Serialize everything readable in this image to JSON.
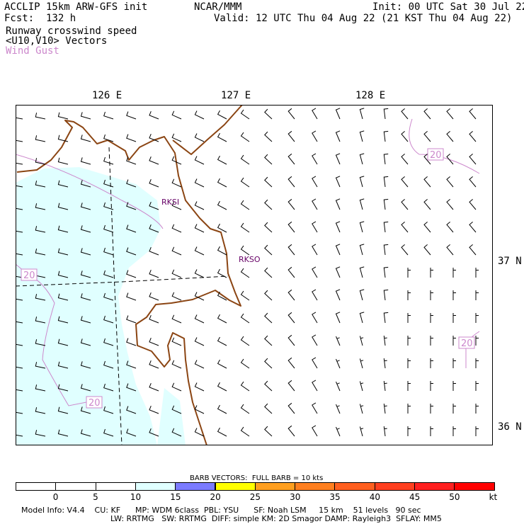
{
  "header": {
    "title": "ACCLIP 15km ARW-GFS init",
    "org": "NCAR/MMM",
    "init": "Init: 00 UTC Sat 30 Jul 22",
    "fcst": "Fcst:  132 h",
    "valid": "Valid: 12 UTC Thu 04 Aug 22 (21 KST Thu 04 Aug 22)",
    "field1": "Runway crosswind speed",
    "field2": "<U10,V10> Vectors",
    "field3": "Wind Gust",
    "field3_color": "#cc88cc"
  },
  "axes": {
    "lon_labels": [
      "126 E",
      "127 E",
      "128 E"
    ],
    "lat_labels": [
      "37 N",
      "36 N"
    ]
  },
  "stations": [
    "RKSI",
    "RKSO"
  ],
  "contour_label": "20",
  "colors": {
    "land": "#8b4513",
    "shade": "#e0ffff",
    "contour": "#cc88cc",
    "station": "#660066"
  },
  "colorbar": {
    "title": "BARB VECTORS:  FULL BARB = 10 kts",
    "labels": [
      "0",
      "5",
      "10",
      "15",
      "20",
      "25",
      "30",
      "35",
      "40",
      "45",
      "50",
      "kt"
    ],
    "colors": [
      "#ffffff",
      "#ffffff",
      "#ffffff",
      "#e0ffff",
      "#7b7bff",
      "#ffff00",
      "#ff9f1f",
      "#ff7f1f",
      "#ff5f1f",
      "#ff3f1f",
      "#ff1f1f",
      "#ff0000"
    ]
  },
  "footer": {
    "line1": "Model Info: V4.4    CU: KF      MP: WDM 6class  PBL: YSU      SF: Noah LSM     15 km    51 levels   90 sec",
    "line2": "LW: RRTMG   SW: RRTMG  DIFF: simple KM: 2D Smagor DAMP: Rayleigh3  SFLAY: MM5"
  }
}
